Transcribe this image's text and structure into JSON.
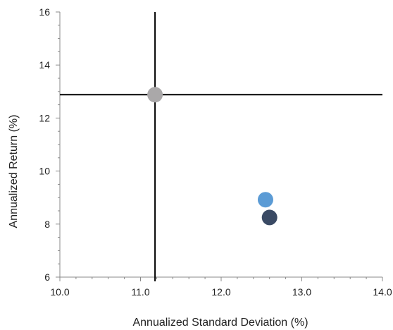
{
  "chart_data": {
    "type": "scatter",
    "title": "",
    "xlabel": "Annualized Standard Deviation (%)",
    "ylabel": "Annualized Return (%)",
    "xlim": [
      10.0,
      14.0
    ],
    "ylim": [
      6,
      16
    ],
    "x_ticks": [
      "10.0",
      "11.0",
      "12.0",
      "13.0",
      "14.0"
    ],
    "y_ticks": [
      "6",
      "8",
      "10",
      "12",
      "14",
      "16"
    ],
    "grid": false,
    "legend": "none",
    "crosshair": {
      "x": 11.18,
      "y": 12.88,
      "color": "#000000"
    },
    "points": [
      {
        "x": 11.18,
        "y": 12.88,
        "color": "#aaa8a9"
      },
      {
        "x": 12.55,
        "y": 8.92,
        "color": "#5b9bd5"
      },
      {
        "x": 12.6,
        "y": 8.25,
        "color": "#3a4a64"
      }
    ]
  }
}
